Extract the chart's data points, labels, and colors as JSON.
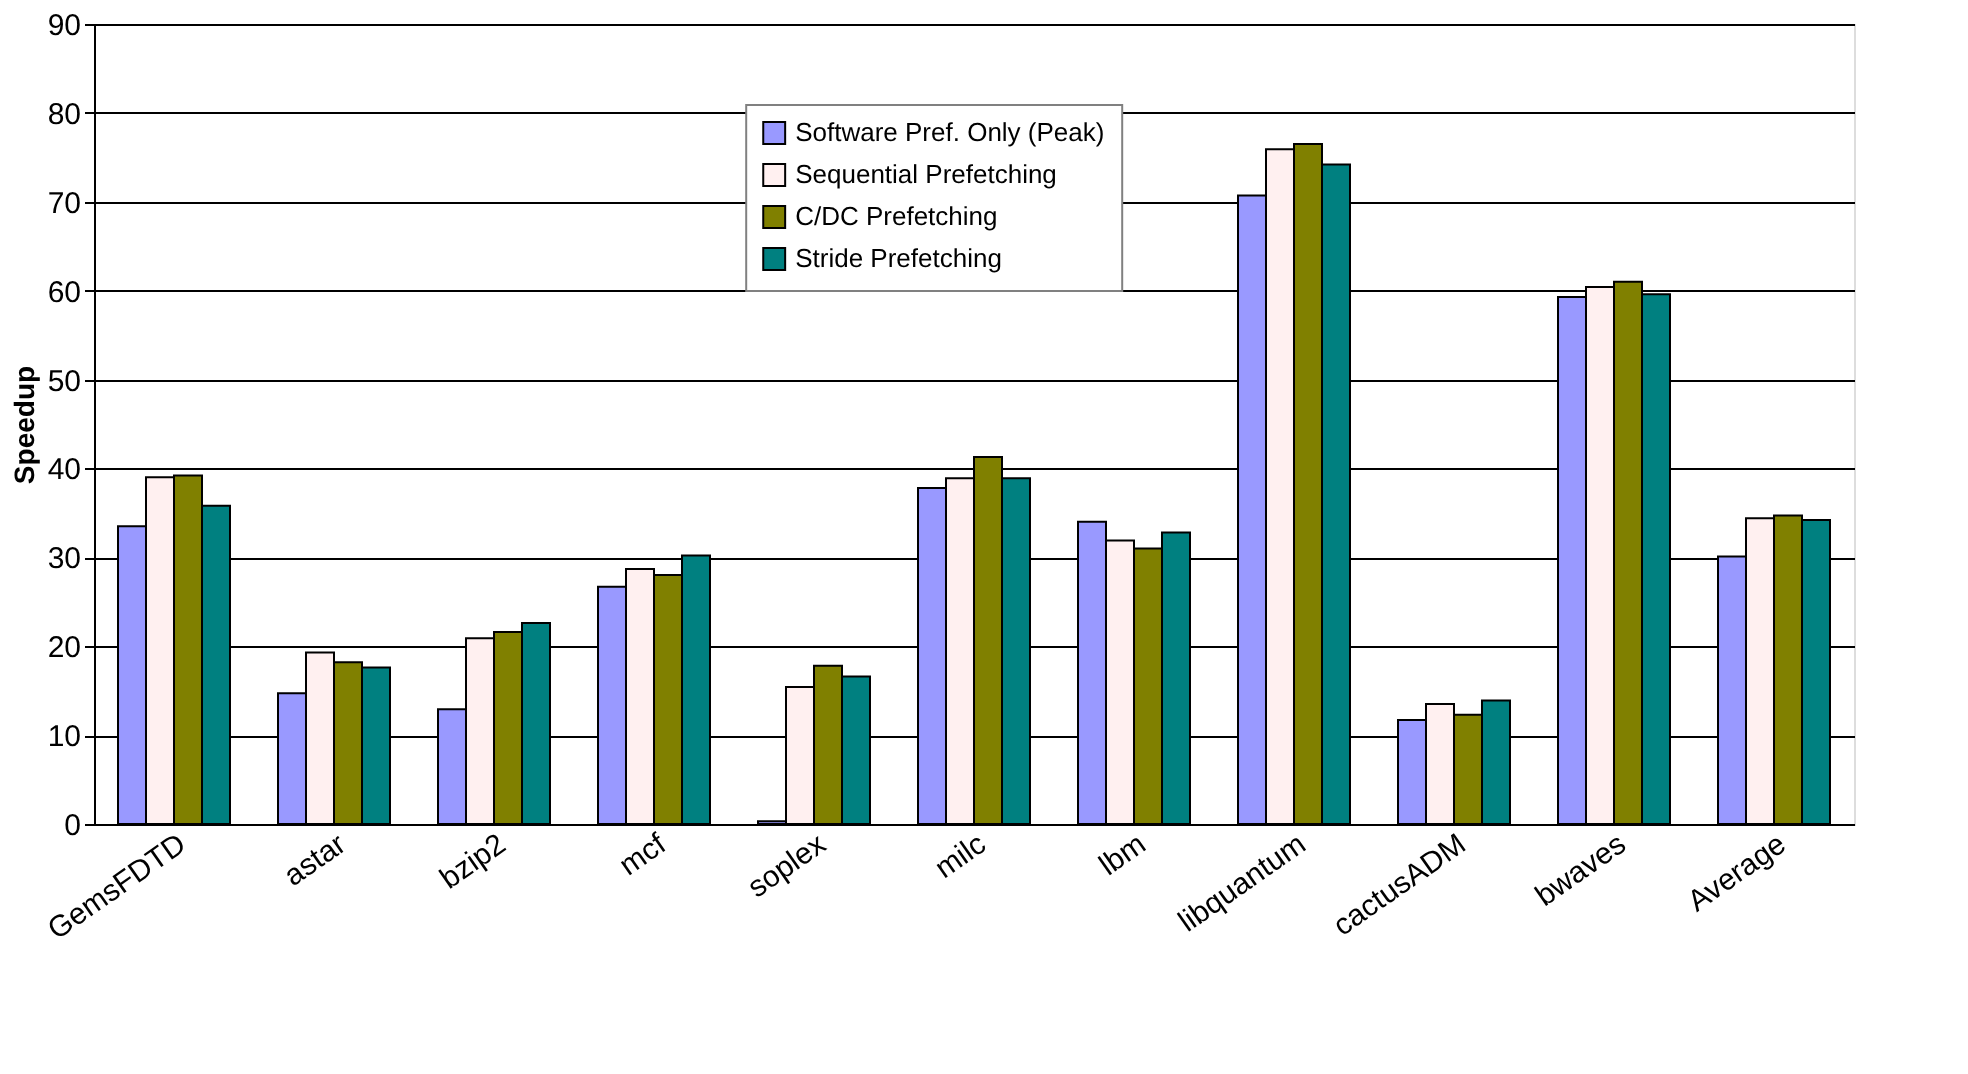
{
  "chart_data": {
    "type": "bar",
    "ylabel": "Speedup",
    "categories": [
      "GemsFDTD",
      "astar",
      "bzip2",
      "mcf",
      "soplex",
      "milc",
      "lbm",
      "libquantum",
      "cactusADM",
      "bwaves",
      "Average"
    ],
    "series": [
      {
        "name": "Software Pref. Only (Peak)",
        "color": "#9999ff",
        "values": [
          33.5,
          14.7,
          12.9,
          26.7,
          0.3,
          37.8,
          34.0,
          70.7,
          11.7,
          59.3,
          30.1
        ]
      },
      {
        "name": "Sequential Prefetching",
        "color": "#fff0f0",
        "values": [
          39.0,
          19.3,
          20.9,
          28.7,
          15.4,
          38.9,
          31.9,
          75.9,
          13.5,
          60.4,
          34.4
        ]
      },
      {
        "name": "C/DC Prefetching",
        "color": "#808000",
        "values": [
          39.2,
          18.2,
          21.6,
          28.0,
          17.8,
          41.3,
          31.0,
          76.5,
          12.3,
          61.0,
          34.7
        ]
      },
      {
        "name": "Stride Prefetching",
        "color": "#008080",
        "values": [
          35.8,
          17.6,
          22.6,
          30.2,
          16.6,
          38.9,
          32.8,
          74.2,
          13.9,
          59.6,
          34.2
        ]
      }
    ],
    "ylim": [
      0,
      90
    ],
    "yticks": [
      0,
      10,
      20,
      30,
      40,
      50,
      60,
      70,
      80,
      90
    ],
    "grid": "y",
    "legend": "top"
  }
}
